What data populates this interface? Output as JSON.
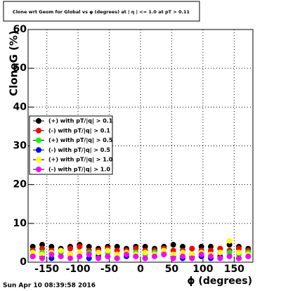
{
  "chart_data": {
    "type": "scatter",
    "title": "Clone wrt Geom for Global vs φ (degrees) at | η | <= 1.0 at pT > 0.11",
    "x_label": "ϕ (degrees)",
    "y_label": "CloneG (%)",
    "timestamp": "Sun Apr 10 08:39:58 2016",
    "xlim": [
      -180,
      180
    ],
    "ylim": [
      0,
      60
    ],
    "xticks": [
      -150,
      -100,
      -50,
      0,
      50,
      100,
      150
    ],
    "yticks": [
      0,
      10,
      20,
      30,
      40,
      50,
      60
    ],
    "grid": true,
    "legend": "left",
    "x": [
      -172.5,
      -157.5,
      -142.5,
      -127.5,
      -112.5,
      -97.5,
      -82.5,
      -67.5,
      -52.5,
      -37.5,
      -22.5,
      -7.5,
      7.5,
      22.5,
      37.5,
      52.5,
      67.5,
      82.5,
      97.5,
      112.5,
      127.5,
      142.5,
      157.5,
      172.5
    ],
    "series": [
      {
        "name": "(+) with pT/|q| > 0.1",
        "color": "#000000",
        "values": [
          4,
          4.5,
          4,
          3.5,
          4,
          4.5,
          4,
          3.5,
          4,
          4,
          3.5,
          4,
          4,
          3.5,
          4,
          4.5,
          4,
          3.5,
          4,
          4,
          3.5,
          4.5,
          4,
          3.5
        ]
      },
      {
        "name": "(-) with pT/|q| > 0.1",
        "color": "#ff0000",
        "values": [
          3,
          3.5,
          3,
          3,
          3.5,
          4,
          3,
          3,
          3.5,
          3,
          3,
          3.5,
          3,
          3,
          3.5,
          3,
          3,
          3.5,
          3,
          3,
          3.5,
          3,
          3.5,
          3
        ]
      },
      {
        "name": "(+) with pT/|q| > 0.5",
        "color": "#00ff00",
        "values": [
          2.5,
          2.5,
          2,
          2.5,
          2,
          2.5,
          2.5,
          2,
          2.5,
          2,
          2.5,
          2.5,
          2,
          2.5,
          2.5,
          2,
          2.5,
          2,
          2.5,
          2,
          2.5,
          2.5,
          2,
          2.5
        ]
      },
      {
        "name": "(-) with pT/|q| > 0.5",
        "color": "#0000ff",
        "values": [
          1.5,
          1.5,
          1,
          1.5,
          2,
          1.5,
          1,
          1.5,
          1.5,
          1,
          1.5,
          1.5,
          1,
          1.5,
          2,
          1.5,
          1,
          1.5,
          1.5,
          1,
          1.5,
          1.5,
          1,
          1.5
        ]
      },
      {
        "name": "(+) with pT/|q| > 1.0",
        "color": "#ffff00",
        "values": [
          2.5,
          2,
          2.5,
          3,
          2,
          2.5,
          2,
          2.5,
          3,
          2,
          2.5,
          2,
          2.5,
          2,
          3,
          2,
          2.5,
          2,
          2.5,
          2,
          2.5,
          5.5,
          2.5,
          2
        ]
      },
      {
        "name": "(-) with pT/|q| > 1.0",
        "color": "#ff00ff",
        "values": [
          1.5,
          1,
          2,
          1.5,
          1,
          1.5,
          2,
          1,
          1.5,
          1,
          2,
          1.5,
          1,
          1.5,
          2,
          1,
          1.5,
          1,
          2,
          1.5,
          1,
          1.5,
          1,
          1.5
        ]
      }
    ]
  }
}
